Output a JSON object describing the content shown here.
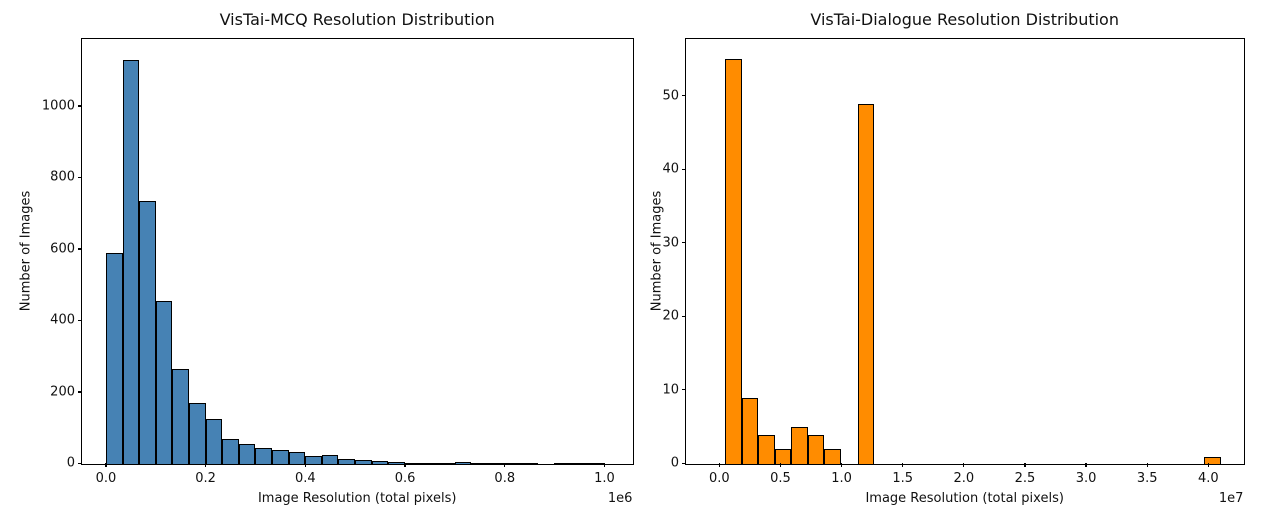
{
  "figure": {
    "background": "#ffffff",
    "spine_color": "#000000"
  },
  "chart_data": [
    {
      "type": "bar",
      "subtype": "histogram",
      "title": "VisTai-MCQ Resolution Distribution",
      "xlabel": "Image Resolution (total pixels)",
      "ylabel": "Number of Images",
      "x_offset_label": "1e6",
      "bar_color": "#4682B4",
      "edge_color": "#000000",
      "grid": false,
      "legend": null,
      "bin_start": 0.0,
      "bin_width": 0.0333,
      "counts": [
        590,
        1130,
        737,
        455,
        266,
        170,
        127,
        70,
        55,
        45,
        40,
        33,
        22,
        25,
        14,
        11,
        9,
        6,
        4,
        3,
        2,
        5,
        2,
        1,
        1,
        1,
        0,
        1,
        2,
        4
      ],
      "xlim": [
        -0.048,
        1.056
      ],
      "ylim": [
        0,
        1187
      ],
      "xticks": [
        {
          "v": 0.0,
          "l": "0.0"
        },
        {
          "v": 0.2,
          "l": "0.2"
        },
        {
          "v": 0.4,
          "l": "0.4"
        },
        {
          "v": 0.6,
          "l": "0.6"
        },
        {
          "v": 0.8,
          "l": "0.8"
        },
        {
          "v": 1.0,
          "l": "1.0"
        }
      ],
      "yticks": [
        {
          "v": 0,
          "l": "0"
        },
        {
          "v": 200,
          "l": "200"
        },
        {
          "v": 400,
          "l": "400"
        },
        {
          "v": 600,
          "l": "600"
        },
        {
          "v": 800,
          "l": "800"
        },
        {
          "v": 1000,
          "l": "1000"
        }
      ]
    },
    {
      "type": "bar",
      "subtype": "histogram",
      "title": "VisTai-Dialogue Resolution Distribution",
      "xlabel": "Image Resolution (total pixels)",
      "ylabel": "Number of Images",
      "x_offset_label": "1e7",
      "bar_color": "#FF8C00",
      "edge_color": "#000000",
      "grid": false,
      "legend": null,
      "bin_start": 0.05,
      "bin_width": 0.135,
      "counts": [
        55,
        9,
        4,
        2,
        5,
        4,
        2,
        0,
        49,
        0,
        0,
        0,
        0,
        0,
        0,
        0,
        0,
        0,
        0,
        0,
        0,
        0,
        0,
        0,
        0,
        0,
        0,
        0,
        0,
        1
      ],
      "xlim": [
        -0.273,
        4.287
      ],
      "ylim": [
        0,
        57.7
      ],
      "xticks": [
        {
          "v": 0.0,
          "l": "0.0"
        },
        {
          "v": 0.5,
          "l": "0.5"
        },
        {
          "v": 1.0,
          "l": "1.0"
        },
        {
          "v": 1.5,
          "l": "1.5"
        },
        {
          "v": 2.0,
          "l": "2.0"
        },
        {
          "v": 2.5,
          "l": "2.5"
        },
        {
          "v": 3.0,
          "l": "3.0"
        },
        {
          "v": 3.5,
          "l": "3.5"
        },
        {
          "v": 4.0,
          "l": "4.0"
        }
      ],
      "yticks": [
        {
          "v": 0,
          "l": "0"
        },
        {
          "v": 10,
          "l": "10"
        },
        {
          "v": 20,
          "l": "20"
        },
        {
          "v": 30,
          "l": "30"
        },
        {
          "v": 40,
          "l": "40"
        },
        {
          "v": 50,
          "l": "50"
        }
      ]
    }
  ]
}
